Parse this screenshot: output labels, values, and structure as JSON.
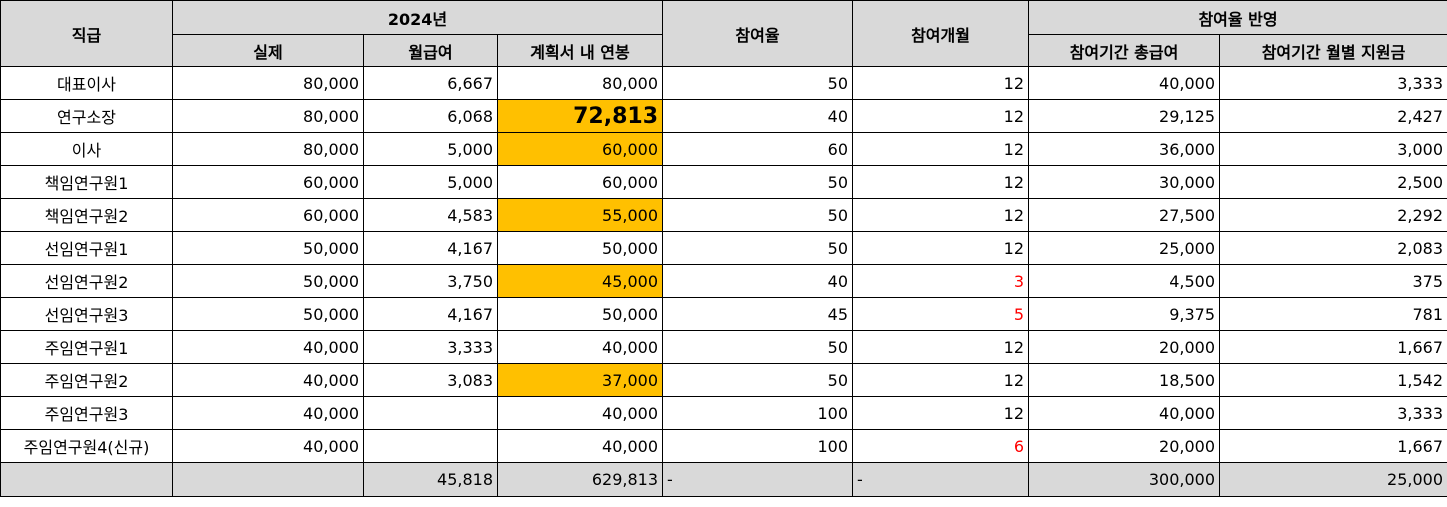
{
  "header": {
    "rank": "직급",
    "year": "2024년",
    "actual": "실제",
    "monthly": "월급여",
    "plan_salary": "계획서 내 연봉",
    "participation_rate": "참여율",
    "participation_months": "참여개월",
    "reflect": "참여율 반영",
    "period_total": "참여기간 총급여",
    "period_monthly": "참여기간 월별 지원금"
  },
  "rows": [
    {
      "rank": "대표이사",
      "actual": "80,000",
      "monthly": "6,667",
      "plan": "80,000",
      "rate": "50",
      "months": "12",
      "total": "40,000",
      "per_month": "3,333",
      "highlight": false,
      "red_months": false
    },
    {
      "rank": "연구소장",
      "actual": "80,000",
      "monthly": "6,068",
      "plan": "72,813",
      "rate": "40",
      "months": "12",
      "total": "29,125",
      "per_month": "2,427",
      "highlight": true,
      "big": true,
      "red_months": false
    },
    {
      "rank": "이사",
      "actual": "80,000",
      "monthly": "5,000",
      "plan": "60,000",
      "rate": "60",
      "months": "12",
      "total": "36,000",
      "per_month": "3,000",
      "highlight": true,
      "red_months": false
    },
    {
      "rank": "책임연구원1",
      "actual": "60,000",
      "monthly": "5,000",
      "plan": "60,000",
      "rate": "50",
      "months": "12",
      "total": "30,000",
      "per_month": "2,500",
      "highlight": false,
      "red_months": false
    },
    {
      "rank": "책임연구원2",
      "actual": "60,000",
      "monthly": "4,583",
      "plan": "55,000",
      "rate": "50",
      "months": "12",
      "total": "27,500",
      "per_month": "2,292",
      "highlight": true,
      "red_months": false
    },
    {
      "rank": "선임연구원1",
      "actual": "50,000",
      "monthly": "4,167",
      "plan": "50,000",
      "rate": "50",
      "months": "12",
      "total": "25,000",
      "per_month": "2,083",
      "highlight": false,
      "red_months": false
    },
    {
      "rank": "선임연구원2",
      "actual": "50,000",
      "monthly": "3,750",
      "plan": "45,000",
      "rate": "40",
      "months": "3",
      "total": "4,500",
      "per_month": "375",
      "highlight": true,
      "red_months": true
    },
    {
      "rank": "선임연구원3",
      "actual": "50,000",
      "monthly": "4,167",
      "plan": "50,000",
      "rate": "45",
      "months": "5",
      "total": "9,375",
      "per_month": "781",
      "highlight": false,
      "red_months": true
    },
    {
      "rank": "주임연구원1",
      "actual": "40,000",
      "monthly": "3,333",
      "plan": "40,000",
      "rate": "50",
      "months": "12",
      "total": "20,000",
      "per_month": "1,667",
      "highlight": false,
      "red_months": false
    },
    {
      "rank": "주임연구원2",
      "actual": "40,000",
      "monthly": "3,083",
      "plan": "37,000",
      "rate": "50",
      "months": "12",
      "total": "18,500",
      "per_month": "1,542",
      "highlight": true,
      "red_months": false
    },
    {
      "rank": "주임연구원3",
      "actual": "40,000",
      "monthly": "",
      "plan": "40,000",
      "rate": "100",
      "months": "12",
      "total": "40,000",
      "per_month": "3,333",
      "highlight": false,
      "red_months": false
    },
    {
      "rank": "주임연구원4(신규)",
      "actual": "40,000",
      "monthly": "",
      "plan": "40,000",
      "rate": "100",
      "months": "6",
      "total": "20,000",
      "per_month": "1,667",
      "highlight": false,
      "red_months": true
    }
  ],
  "totals": {
    "monthly": "45,818",
    "plan": "629,813",
    "rate": "-",
    "months": "-",
    "total": "300,000",
    "per_month": "25,000"
  },
  "colors": {
    "header_bg": "#d9d9d9",
    "highlight": "#ffc000",
    "red_text": "#ff0000"
  }
}
